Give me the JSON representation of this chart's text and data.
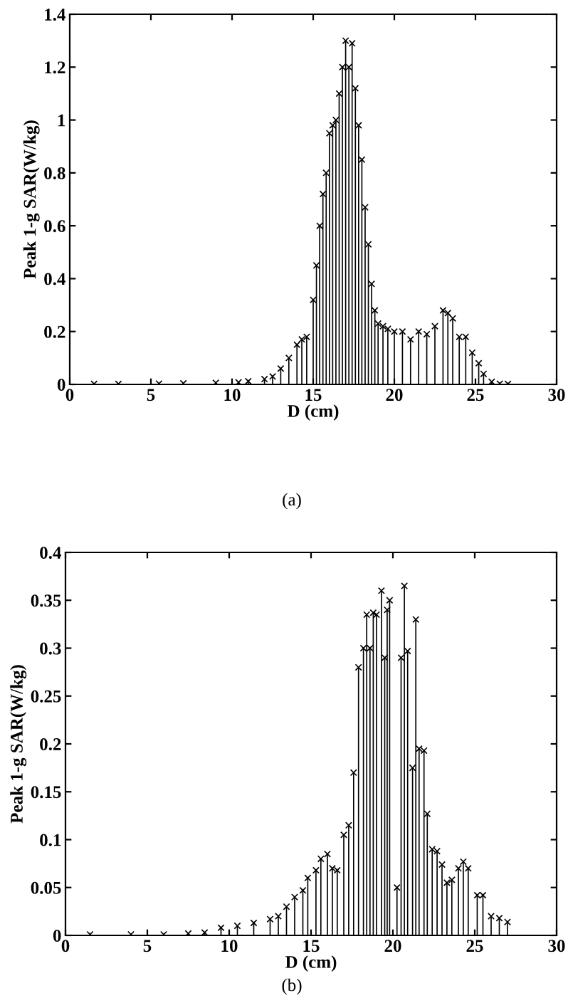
{
  "chart_data": [
    {
      "type": "lollipop",
      "xlabel": "D (cm)",
      "ylabel": "Peak 1-g SAR(W/kg)",
      "annotations": [
        "(a)"
      ],
      "marker": "cross",
      "color": "#000000",
      "grid": false,
      "x": [
        1.5,
        3,
        5.5,
        7,
        9,
        10.4,
        11,
        12,
        12.5,
        13,
        13.5,
        14,
        14.3,
        14.6,
        15,
        15.2,
        15.4,
        15.6,
        15.8,
        16,
        16.2,
        16.4,
        16.6,
        16.8,
        17,
        17.2,
        17.4,
        17.6,
        17.8,
        18,
        18.2,
        18.4,
        18.6,
        18.8,
        19,
        19.3,
        19.6,
        20,
        20.5,
        21,
        21.5,
        22,
        22.5,
        23,
        23.3,
        23.6,
        24,
        24.4,
        24.8,
        25.2,
        25.5,
        26,
        26.5,
        27
      ],
      "values": [
        0.002,
        0.002,
        0.003,
        0.004,
        0.006,
        0.008,
        0.012,
        0.02,
        0.03,
        0.06,
        0.1,
        0.15,
        0.17,
        0.18,
        0.32,
        0.45,
        0.6,
        0.72,
        0.8,
        0.95,
        0.98,
        1.0,
        1.1,
        1.2,
        1.3,
        1.2,
        1.29,
        1.12,
        0.98,
        0.85,
        0.67,
        0.53,
        0.38,
        0.28,
        0.23,
        0.22,
        0.21,
        0.2,
        0.2,
        0.17,
        0.2,
        0.19,
        0.22,
        0.28,
        0.27,
        0.25,
        0.18,
        0.18,
        0.12,
        0.08,
        0.04,
        0.01,
        0.003,
        0.002
      ],
      "xlim": [
        0,
        30
      ],
      "xticks": [
        0,
        5,
        10,
        15,
        20,
        25,
        30
      ],
      "ylim": [
        0,
        1.4
      ],
      "yticks": [
        0,
        0.2,
        0.4,
        0.6,
        0.8,
        1,
        1.2,
        1.4
      ]
    },
    {
      "type": "lollipop",
      "xlabel": "D (cm)",
      "ylabel": "Peak 1-g SAR(W/kg)",
      "annotations": [
        "(b)"
      ],
      "marker": "cross",
      "color": "#000000",
      "grid": false,
      "x": [
        1.5,
        4,
        6,
        7.5,
        8.5,
        9.5,
        10.5,
        11.5,
        12.5,
        13,
        13.5,
        14,
        14.5,
        14.8,
        15.3,
        15.6,
        16,
        16.3,
        16.6,
        17,
        17.3,
        17.6,
        17.9,
        18.2,
        18.4,
        18.6,
        18.8,
        19,
        19.3,
        19.5,
        19.65,
        19.8,
        20.25,
        20.5,
        20.7,
        20.9,
        21.2,
        21.4,
        21.6,
        21.9,
        22.1,
        22.4,
        22.7,
        23,
        23.3,
        23.6,
        24,
        24.3,
        24.6,
        25.15,
        25.5,
        26,
        26.5,
        27
      ],
      "values": [
        0.001,
        0.001,
        0.001,
        0.002,
        0.003,
        0.008,
        0.01,
        0.013,
        0.017,
        0.02,
        0.03,
        0.04,
        0.047,
        0.06,
        0.068,
        0.08,
        0.085,
        0.07,
        0.068,
        0.105,
        0.115,
        0.17,
        0.28,
        0.3,
        0.335,
        0.3,
        0.337,
        0.335,
        0.36,
        0.29,
        0.34,
        0.35,
        0.05,
        0.29,
        0.365,
        0.297,
        0.175,
        0.33,
        0.195,
        0.193,
        0.127,
        0.09,
        0.088,
        0.074,
        0.055,
        0.058,
        0.07,
        0.077,
        0.07,
        0.042,
        0.042,
        0.02,
        0.018,
        0.014
      ],
      "xlim": [
        0,
        30
      ],
      "xticks": [
        0,
        5,
        10,
        15,
        20,
        25,
        30
      ],
      "ylim": [
        0,
        0.4
      ],
      "yticks": [
        0,
        0.05,
        0.1,
        0.15,
        0.2,
        0.25,
        0.3,
        0.35,
        0.4
      ]
    }
  ]
}
